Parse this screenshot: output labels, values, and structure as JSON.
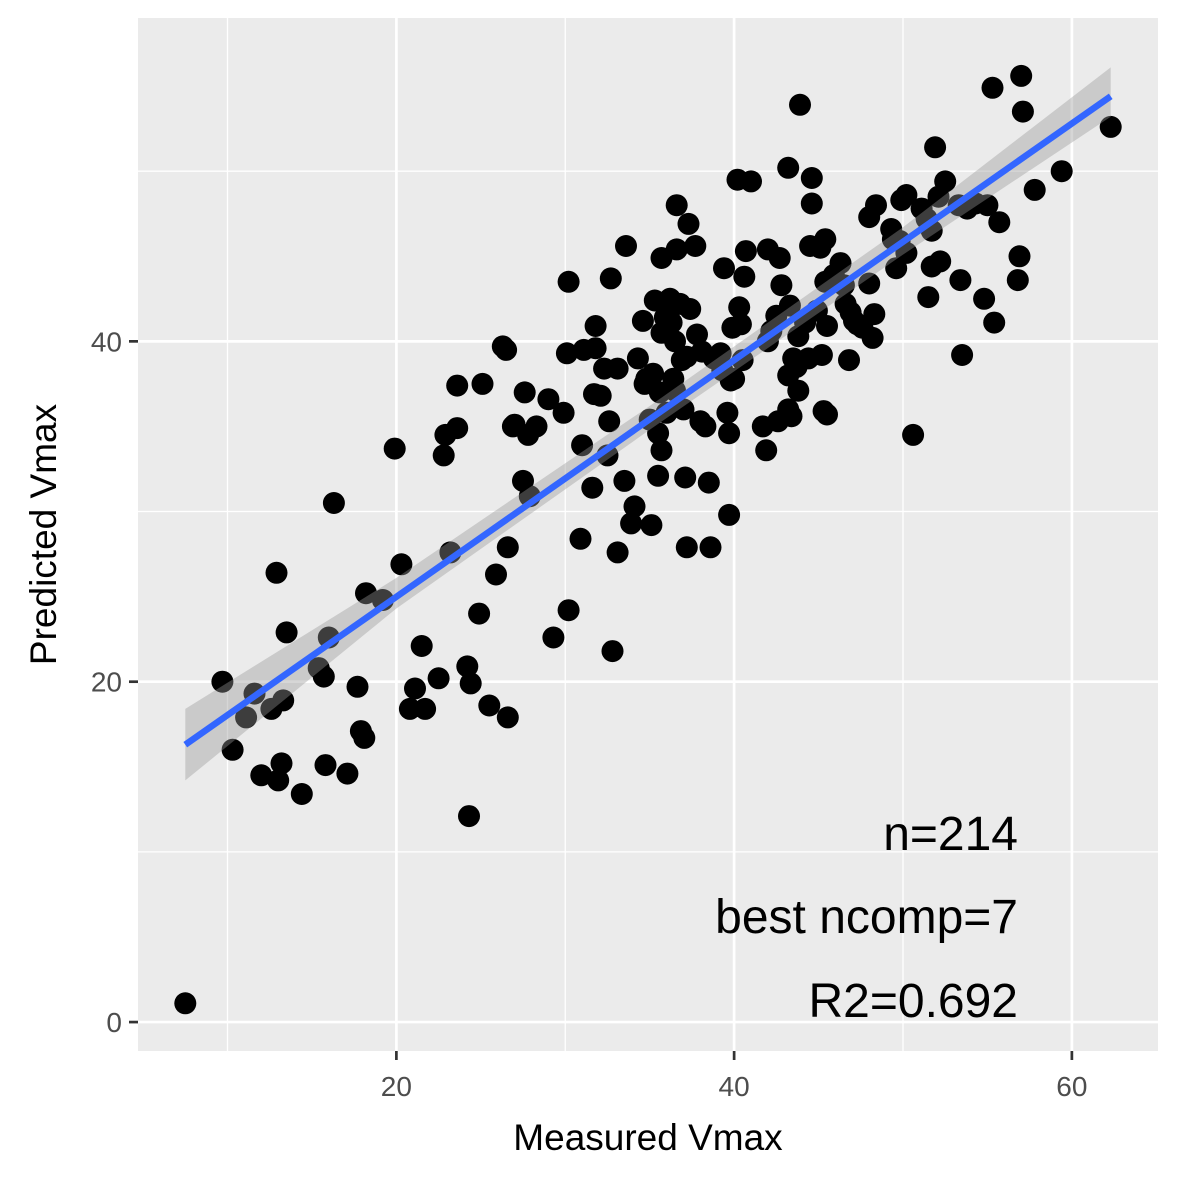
{
  "chart_data": {
    "type": "scatter",
    "title": "",
    "xlabel": "Measured Vmax",
    "ylabel": "Predicted Vmax",
    "xlim": [
      4.7,
      65.1
    ],
    "ylim": [
      -1.7,
      59.0
    ],
    "x_ticks": [
      20,
      40,
      60
    ],
    "x_tick_labels": [
      "20",
      "40",
      "60"
    ],
    "y_ticks": [
      0,
      20,
      40
    ],
    "y_tick_labels": [
      "0",
      "20",
      "40"
    ],
    "grid": true,
    "legend": "none",
    "colors": {
      "panel_background": "#ebebeb",
      "grid": "#ffffff",
      "points": "#000000",
      "fit_line": "#3366ff",
      "confidence_band": "#999999"
    },
    "annotations": [
      "n=214",
      "best ncomp=7",
      "R2=0.692"
    ],
    "fit_line": {
      "x0": 7.5,
      "y0": 16.3,
      "x1": 62.3,
      "y1": 54.4
    },
    "confidence_band": [
      {
        "x": 7.5,
        "lo": 14.2,
        "hi": 18.4
      },
      {
        "x": 20,
        "lo": 24.3,
        "hi": 26.1
      },
      {
        "x": 35,
        "lo": 34.8,
        "hi": 36.2
      },
      {
        "x": 50,
        "lo": 45.1,
        "hi": 46.7
      },
      {
        "x": 62.3,
        "lo": 53.2,
        "hi": 56.1
      }
    ],
    "points": [
      [
        7.5,
        1.1
      ],
      [
        9.7,
        20.0
      ],
      [
        10.3,
        16.0
      ],
      [
        11.1,
        17.9
      ],
      [
        11.6,
        19.3
      ],
      [
        12.0,
        14.5
      ],
      [
        12.6,
        18.4
      ],
      [
        13.0,
        14.2
      ],
      [
        13.2,
        15.2
      ],
      [
        13.3,
        18.9
      ],
      [
        12.9,
        26.4
      ],
      [
        13.5,
        22.9
      ],
      [
        14.4,
        13.4
      ],
      [
        15.4,
        20.8
      ],
      [
        15.7,
        20.3
      ],
      [
        15.8,
        15.1
      ],
      [
        16.0,
        22.6
      ],
      [
        16.3,
        30.5
      ],
      [
        17.1,
        14.6
      ],
      [
        17.7,
        19.7
      ],
      [
        17.9,
        17.1
      ],
      [
        18.1,
        16.7
      ],
      [
        18.2,
        25.2
      ],
      [
        19.2,
        24.8
      ],
      [
        19.9,
        33.7
      ],
      [
        20.3,
        26.9
      ],
      [
        20.8,
        18.4
      ],
      [
        21.1,
        19.6
      ],
      [
        21.5,
        22.1
      ],
      [
        21.7,
        18.4
      ],
      [
        22.5,
        20.2
      ],
      [
        22.8,
        33.3
      ],
      [
        22.9,
        34.5
      ],
      [
        23.2,
        27.6
      ],
      [
        23.6,
        34.9
      ],
      [
        23.6,
        37.4
      ],
      [
        24.2,
        20.9
      ],
      [
        24.4,
        19.9
      ],
      [
        24.3,
        12.1
      ],
      [
        24.9,
        24.0
      ],
      [
        25.1,
        37.5
      ],
      [
        25.5,
        18.6
      ],
      [
        25.9,
        26.3
      ],
      [
        26.3,
        39.7
      ],
      [
        26.5,
        39.5
      ],
      [
        26.6,
        27.9
      ],
      [
        26.6,
        17.9
      ],
      [
        27.0,
        35.1
      ],
      [
        27.5,
        31.8
      ],
      [
        27.6,
        37.0
      ],
      [
        27.8,
        34.5
      ],
      [
        27.9,
        30.9
      ],
      [
        28.3,
        35.0
      ],
      [
        29.0,
        36.6
      ],
      [
        29.3,
        22.6
      ],
      [
        29.9,
        35.8
      ],
      [
        30.1,
        39.3
      ],
      [
        30.2,
        24.2
      ],
      [
        30.2,
        43.5
      ],
      [
        30.9,
        28.4
      ],
      [
        31.0,
        33.9
      ],
      [
        31.1,
        39.5
      ],
      [
        31.6,
        31.4
      ],
      [
        31.7,
        36.9
      ],
      [
        31.8,
        39.6
      ],
      [
        31.8,
        40.9
      ],
      [
        32.1,
        36.8
      ],
      [
        32.3,
        38.4
      ],
      [
        32.5,
        33.3
      ],
      [
        32.6,
        35.3
      ],
      [
        32.7,
        43.7
      ],
      [
        32.8,
        21.8
      ],
      [
        33.1,
        38.4
      ],
      [
        33.1,
        27.6
      ],
      [
        33.5,
        31.8
      ],
      [
        33.6,
        45.6
      ],
      [
        33.9,
        29.3
      ],
      [
        34.1,
        30.3
      ],
      [
        34.6,
        41.2
      ],
      [
        34.7,
        37.5
      ],
      [
        34.8,
        37.8
      ],
      [
        35.0,
        35.4
      ],
      [
        35.1,
        29.2
      ],
      [
        35.2,
        38.1
      ],
      [
        35.3,
        42.4
      ],
      [
        35.5,
        32.1
      ],
      [
        35.5,
        34.6
      ],
      [
        35.7,
        33.6
      ],
      [
        35.6,
        37.0
      ],
      [
        35.7,
        40.5
      ],
      [
        35.7,
        44.9
      ],
      [
        35.9,
        41.4
      ],
      [
        36.0,
        35.8
      ],
      [
        36.2,
        42.5
      ],
      [
        36.3,
        41.1
      ],
      [
        36.4,
        37.8
      ],
      [
        36.5,
        37.1
      ],
      [
        36.6,
        45.4
      ],
      [
        36.6,
        48.0
      ],
      [
        36.8,
        42.2
      ],
      [
        36.9,
        38.9
      ],
      [
        37.0,
        36.0
      ],
      [
        37.1,
        32.0
      ],
      [
        37.2,
        27.9
      ],
      [
        37.2,
        39.1
      ],
      [
        37.3,
        46.9
      ],
      [
        37.4,
        41.9
      ],
      [
        37.7,
        45.6
      ],
      [
        37.8,
        40.4
      ],
      [
        38.0,
        35.3
      ],
      [
        38.3,
        35.0
      ],
      [
        38.5,
        31.7
      ],
      [
        38.6,
        27.9
      ],
      [
        38.8,
        39.0
      ],
      [
        39.2,
        39.3
      ],
      [
        39.3,
        38.3
      ],
      [
        39.4,
        44.3
      ],
      [
        39.6,
        35.8
      ],
      [
        39.7,
        29.8
      ],
      [
        39.7,
        34.6
      ],
      [
        39.8,
        37.7
      ],
      [
        39.9,
        40.8
      ],
      [
        40.2,
        49.5
      ],
      [
        40.3,
        42.0
      ],
      [
        40.4,
        41.0
      ],
      [
        40.5,
        38.9
      ],
      [
        40.6,
        43.8
      ],
      [
        40.7,
        45.3
      ],
      [
        41.0,
        49.4
      ],
      [
        41.7,
        35.0
      ],
      [
        41.9,
        33.6
      ],
      [
        42.0,
        40.0
      ],
      [
        42.0,
        45.4
      ],
      [
        42.2,
        40.6
      ],
      [
        42.5,
        41.5
      ],
      [
        42.6,
        35.3
      ],
      [
        42.7,
        44.9
      ],
      [
        42.8,
        43.3
      ],
      [
        43.2,
        36.0
      ],
      [
        43.2,
        38.0
      ],
      [
        43.2,
        50.2
      ],
      [
        43.3,
        42.1
      ],
      [
        43.4,
        35.6
      ],
      [
        43.5,
        39.0
      ],
      [
        43.7,
        38.5
      ],
      [
        43.8,
        37.1
      ],
      [
        43.8,
        40.3
      ],
      [
        43.9,
        53.9
      ],
      [
        44.2,
        41.1
      ],
      [
        44.5,
        45.6
      ],
      [
        44.6,
        49.6
      ],
      [
        44.6,
        48.1
      ],
      [
        44.9,
        41.8
      ],
      [
        45.1,
        45.5
      ],
      [
        45.2,
        39.2
      ],
      [
        45.3,
        35.9
      ],
      [
        45.4,
        43.5
      ],
      [
        45.4,
        46.0
      ],
      [
        45.5,
        35.7
      ],
      [
        45.5,
        40.9
      ],
      [
        45.9,
        43.9
      ],
      [
        46.3,
        44.6
      ],
      [
        46.5,
        43.3
      ],
      [
        46.6,
        42.2
      ],
      [
        46.8,
        38.9
      ],
      [
        46.9,
        41.7
      ],
      [
        47.1,
        41.2
      ],
      [
        47.3,
        41.0
      ],
      [
        47.6,
        40.8
      ],
      [
        48.0,
        43.4
      ],
      [
        48.2,
        40.2
      ],
      [
        48.3,
        41.6
      ],
      [
        48.4,
        48.0
      ],
      [
        49.3,
        46.6
      ],
      [
        49.4,
        46.0
      ],
      [
        49.6,
        44.3
      ],
      [
        49.8,
        45.9
      ],
      [
        49.9,
        48.3
      ],
      [
        50.2,
        48.6
      ],
      [
        50.2,
        45.2
      ],
      [
        50.6,
        34.5
      ],
      [
        51.1,
        47.8
      ],
      [
        51.4,
        47.2
      ],
      [
        51.5,
        42.6
      ],
      [
        51.7,
        44.4
      ],
      [
        51.9,
        51.4
      ],
      [
        52.1,
        48.5
      ],
      [
        52.2,
        44.7
      ],
      [
        52.5,
        49.4
      ],
      [
        53.3,
        48.0
      ],
      [
        53.4,
        43.6
      ],
      [
        53.5,
        39.2
      ],
      [
        53.8,
        47.8
      ],
      [
        54.3,
        48.1
      ],
      [
        54.8,
        42.5
      ],
      [
        55.0,
        48.0
      ],
      [
        55.3,
        54.9
      ],
      [
        55.4,
        41.1
      ],
      [
        55.7,
        47.0
      ],
      [
        56.8,
        43.6
      ],
      [
        56.9,
        45.0
      ],
      [
        57.0,
        55.6
      ],
      [
        57.1,
        53.5
      ],
      [
        57.8,
        48.9
      ],
      [
        59.4,
        50.0
      ],
      [
        62.3,
        52.6
      ],
      [
        51.7,
        46.5
      ],
      [
        48.0,
        47.3
      ],
      [
        40.0,
        37.8
      ],
      [
        34.3,
        39.0
      ],
      [
        38.1,
        39.4
      ],
      [
        26.9,
        35.0
      ],
      [
        44.4,
        39.0
      ],
      [
        36.5,
        40.0
      ]
    ]
  }
}
